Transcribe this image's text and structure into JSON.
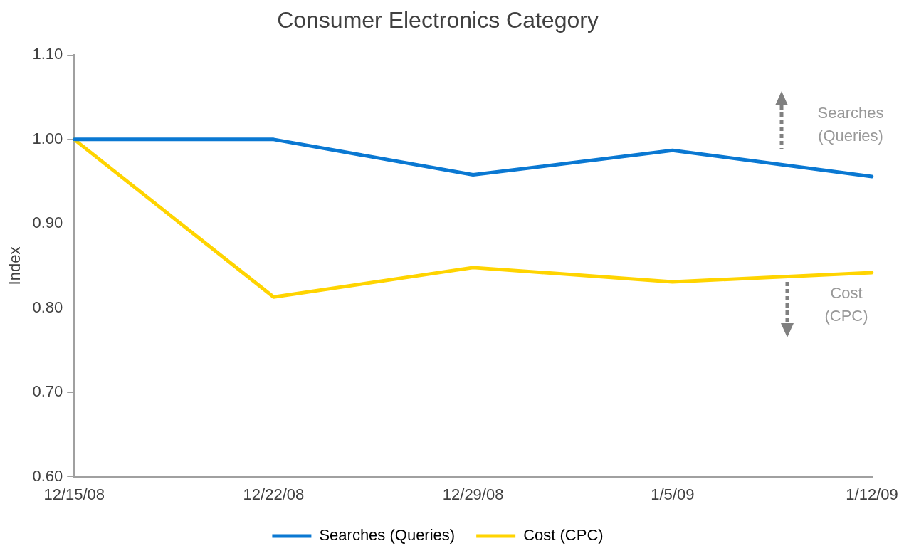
{
  "chart_data": {
    "type": "line",
    "title": "Consumer Electronics Category",
    "ylabel": "Index",
    "categories": [
      "12/15/08",
      "12/22/08",
      "12/29/08",
      "1/5/09",
      "1/12/09"
    ],
    "series": [
      {
        "name": "Searches (Queries)",
        "color": "#0a78d2",
        "values": [
          1.0,
          1.0,
          0.958,
          0.987,
          0.956
        ]
      },
      {
        "name": "Cost (CPC)",
        "color": "#ffd400",
        "values": [
          1.0,
          0.813,
          0.848,
          0.831,
          0.842
        ]
      }
    ],
    "ylim": [
      0.6,
      1.1
    ],
    "yticks": [
      {
        "value": 0.6,
        "label": "0.60"
      },
      {
        "value": 0.7,
        "label": "0.70"
      },
      {
        "value": 0.8,
        "label": "0.80"
      },
      {
        "value": 0.9,
        "label": "0.90"
      },
      {
        "value": 1.0,
        "label": "1.00"
      },
      {
        "value": 1.1,
        "label": "1.10"
      }
    ],
    "grid": false,
    "legend": "bottom",
    "marker": "none",
    "line_style": "solid",
    "annotations": [
      "Searches (Queries)",
      "Cost (CPC)"
    ]
  }
}
